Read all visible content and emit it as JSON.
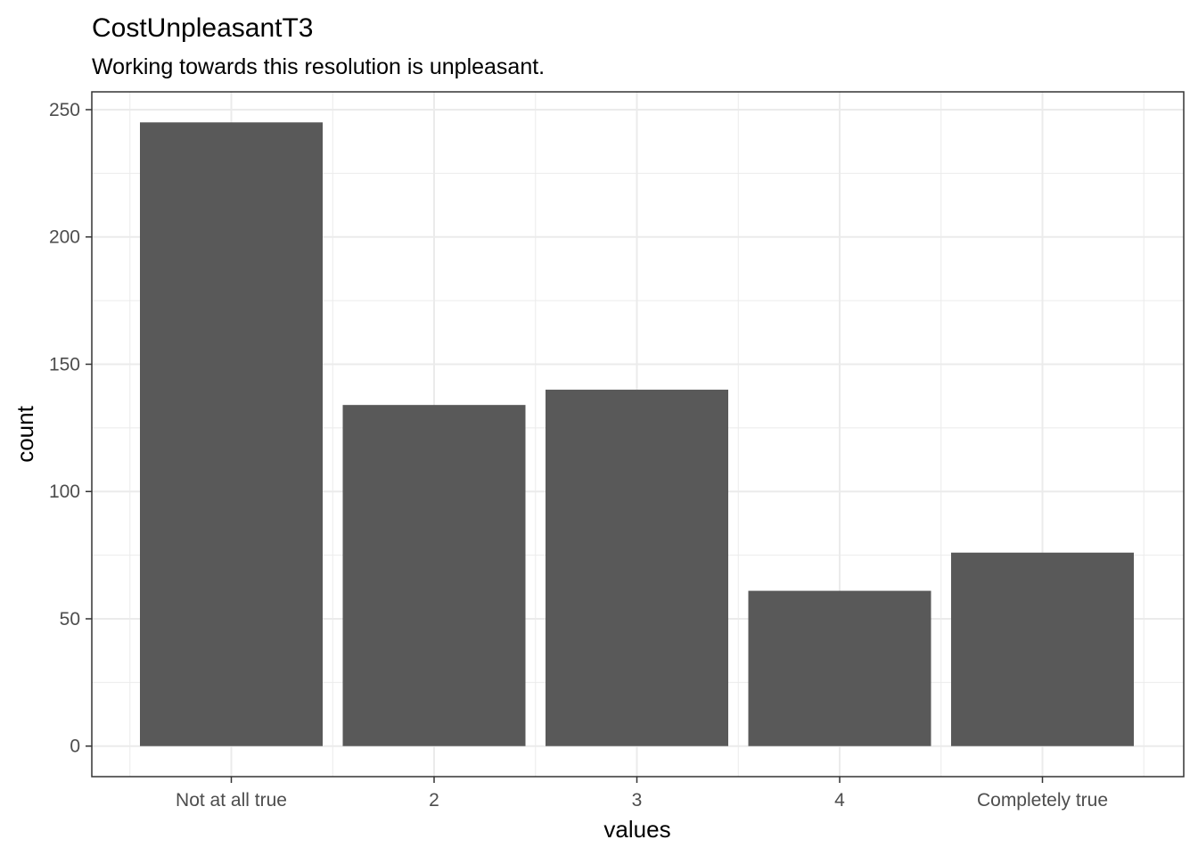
{
  "chart_data": {
    "type": "bar",
    "title": "CostUnpleasantT3",
    "subtitle": "Working towards this resolution is unpleasant.",
    "xlabel": "values",
    "ylabel": "count",
    "categories": [
      "Not at all true",
      "2",
      "3",
      "4",
      "Completely true"
    ],
    "values": [
      245,
      134,
      140,
      61,
      76
    ],
    "ylim": [
      -12,
      257
    ],
    "yticks": [
      0,
      50,
      100,
      150,
      200,
      250
    ],
    "ytick_labels": [
      "0",
      "50",
      "100",
      "150",
      "200",
      "250"
    ],
    "grid": true,
    "legend": "none",
    "bar_color": "#595959",
    "grid_color": "#ebebeb",
    "panel_border_color": "#333333"
  }
}
